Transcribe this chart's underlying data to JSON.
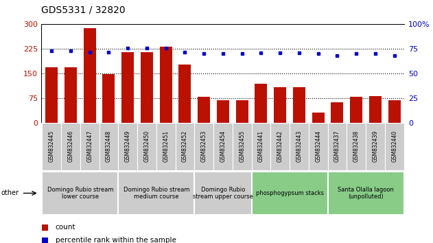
{
  "title": "GDS5331 / 32820",
  "categories": [
    "GSM832445",
    "GSM832446",
    "GSM832447",
    "GSM832448",
    "GSM832449",
    "GSM832450",
    "GSM832451",
    "GSM832452",
    "GSM832453",
    "GSM832454",
    "GSM832455",
    "GSM832441",
    "GSM832442",
    "GSM832443",
    "GSM832444",
    "GSM832437",
    "GSM832438",
    "GSM832439",
    "GSM832440"
  ],
  "counts": [
    170,
    168,
    288,
    148,
    215,
    215,
    232,
    178,
    78,
    68,
    68,
    118,
    108,
    108,
    30,
    62,
    78,
    82,
    68
  ],
  "percentiles": [
    73,
    73,
    72,
    72,
    76,
    76,
    76,
    72,
    70,
    70,
    70,
    71,
    71,
    71,
    70,
    68,
    70,
    70,
    68
  ],
  "ylim_left": [
    0,
    300
  ],
  "ylim_right": [
    0,
    100
  ],
  "yticks_left": [
    0,
    75,
    150,
    225,
    300
  ],
  "yticks_right": [
    0,
    25,
    50,
    75,
    100
  ],
  "bar_color": "#bb1100",
  "dot_color": "#0000cc",
  "groups": [
    {
      "label": "Domingo Rubio stream\nlower course",
      "start": 0,
      "end": 4,
      "color": "#cccccc"
    },
    {
      "label": "Domingo Rubio stream\nmedium course",
      "start": 4,
      "end": 8,
      "color": "#cccccc"
    },
    {
      "label": "Domingo Rubio\nstream upper course",
      "start": 8,
      "end": 11,
      "color": "#cccccc"
    },
    {
      "label": "phosphogypsum stacks",
      "start": 11,
      "end": 15,
      "color": "#88cc88"
    },
    {
      "label": "Santa Olalla lagoon\n(unpolluted)",
      "start": 15,
      "end": 19,
      "color": "#88cc88"
    }
  ],
  "legend_count_label": "count",
  "legend_pct_label": "percentile rank within the sample",
  "other_label": "other"
}
